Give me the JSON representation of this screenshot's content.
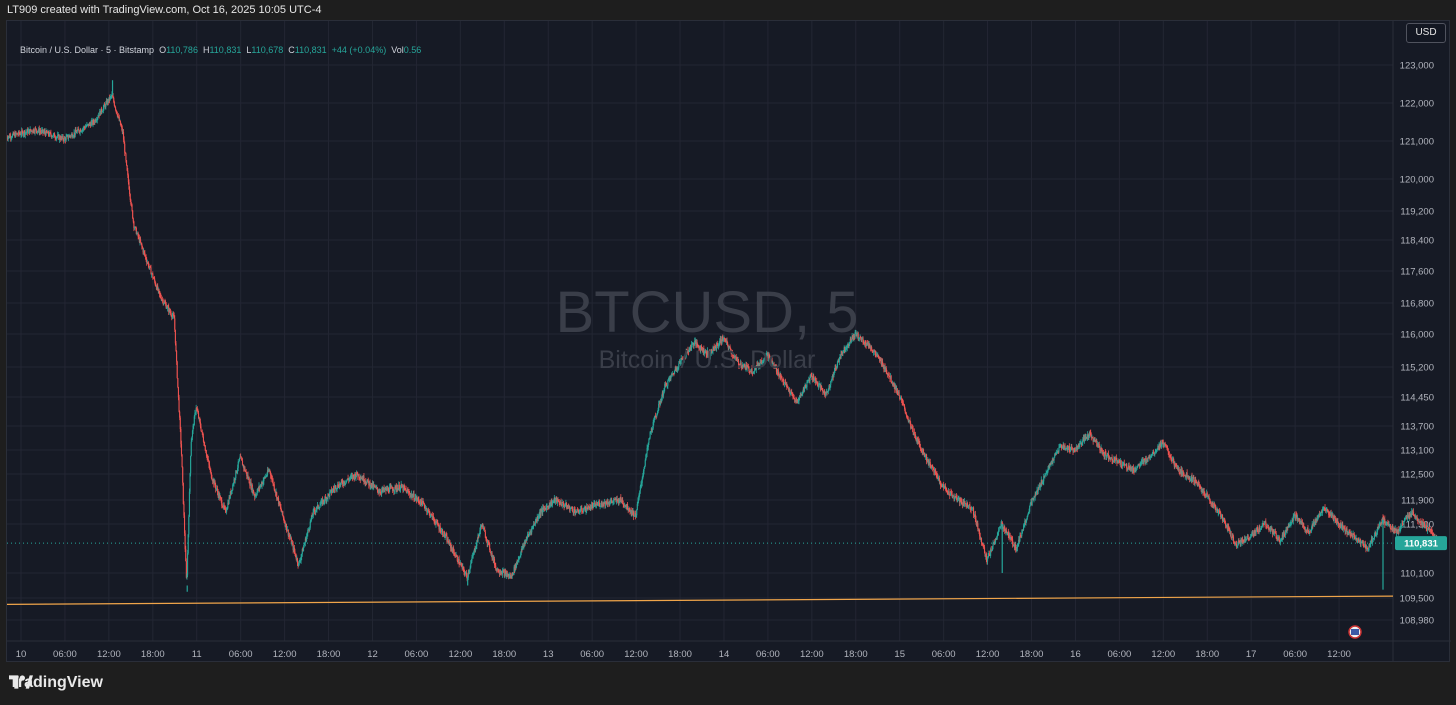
{
  "header": {
    "credit": "LT909 created with TradingView.com, Oct 16, 2025 10:05 UTC-4"
  },
  "legend": {
    "symbol": "Bitcoin / U.S. Dollar · 5 · Bitstamp",
    "o_label": "O",
    "o_value": "110,786",
    "h_label": "H",
    "h_value": "110,831",
    "l_label": "L",
    "l_value": "110,678",
    "c_label": "C",
    "c_value": "110,831",
    "change": "+44 (+0.04%)",
    "vol_label": "Vol",
    "vol_value": "0.56"
  },
  "currency_button": "USD",
  "watermark": {
    "symbol": "BTCUSD, 5",
    "name": "Bitcoin / U.S. Dollar"
  },
  "footer": {
    "brand": "TradingView"
  },
  "colors": {
    "up": "#26a69a",
    "down": "#ef5350",
    "trendline": "#f0a54a",
    "background": "#161a25",
    "grid": "#232633",
    "price_tag": "#26a69a"
  },
  "chart_data": {
    "type": "candlestick",
    "title": "BTCUSD, 5",
    "y_ticks": [
      123000,
      122000,
      121000,
      120000,
      119200,
      118400,
      117600,
      116800,
      116000,
      115200,
      114450,
      113700,
      113100,
      112500,
      111900,
      111300,
      110100,
      109500,
      108980
    ],
    "y_tick_labels": [
      "123,000",
      "122,000",
      "121,000",
      "120,000",
      "119,200",
      "118,400",
      "117,600",
      "116,800",
      "116,000",
      "115,200",
      "114,450",
      "113,700",
      "113,100",
      "112,500",
      "111,900",
      "111,300",
      "110,100",
      "109,500",
      "108,980"
    ],
    "x_tick_labels": [
      "10",
      "06:00",
      "12:00",
      "18:00",
      "11",
      "06:00",
      "12:00",
      "18:00",
      "12",
      "06:00",
      "12:00",
      "18:00",
      "13",
      "06:00",
      "12:00",
      "18:00",
      "14",
      "06:00",
      "12:00",
      "18:00",
      "15",
      "06:00",
      "12:00",
      "18:00",
      "16",
      "06:00",
      "12:00",
      "18:00",
      "17",
      "06:00",
      "12:00"
    ],
    "x_start_hours": -2,
    "x_end_hours": 172,
    "last_price": 110831,
    "last_price_label": "110,831",
    "price_path": [
      [
        -2,
        121100
      ],
      [
        2,
        121300
      ],
      [
        6,
        121050
      ],
      [
        10,
        121500
      ],
      [
        12.5,
        122200
      ],
      [
        14,
        121200
      ],
      [
        14.5,
        120300
      ],
      [
        15.5,
        118800
      ],
      [
        17,
        118000
      ],
      [
        19,
        117000
      ],
      [
        21,
        116400
      ],
      [
        22,
        113000
      ],
      [
        22.7,
        109800
      ],
      [
        23.3,
        113300
      ],
      [
        24,
        114200
      ],
      [
        26,
        112500
      ],
      [
        28,
        111600
      ],
      [
        30,
        112900
      ],
      [
        32,
        112000
      ],
      [
        34,
        112600
      ],
      [
        36,
        111400
      ],
      [
        38,
        110300
      ],
      [
        40,
        111600
      ],
      [
        43,
        112200
      ],
      [
        46,
        112500
      ],
      [
        49,
        112100
      ],
      [
        52,
        112200
      ],
      [
        55,
        111800
      ],
      [
        58,
        111000
      ],
      [
        61,
        110000
      ],
      [
        63,
        111300
      ],
      [
        65,
        110200
      ],
      [
        67,
        110000
      ],
      [
        69,
        110900
      ],
      [
        71,
        111600
      ],
      [
        73,
        111900
      ],
      [
        76,
        111600
      ],
      [
        79,
        111800
      ],
      [
        82,
        111900
      ],
      [
        84,
        111500
      ],
      [
        86,
        113500
      ],
      [
        88,
        114700
      ],
      [
        90,
        115300
      ],
      [
        92,
        115800
      ],
      [
        94,
        115500
      ],
      [
        96,
        115900
      ],
      [
        98,
        115300
      ],
      [
        100,
        115100
      ],
      [
        102,
        115500
      ],
      [
        104,
        114900
      ],
      [
        106,
        114300
      ],
      [
        108,
        115000
      ],
      [
        110,
        114500
      ],
      [
        112,
        115500
      ],
      [
        114,
        116000
      ],
      [
        116,
        115700
      ],
      [
        118,
        115200
      ],
      [
        120,
        114500
      ],
      [
        122,
        113500
      ],
      [
        124,
        112800
      ],
      [
        126,
        112200
      ],
      [
        128,
        111900
      ],
      [
        130,
        111700
      ],
      [
        132,
        110400
      ],
      [
        134,
        111300
      ],
      [
        136,
        110700
      ],
      [
        138,
        111800
      ],
      [
        140,
        112500
      ],
      [
        142,
        113200
      ],
      [
        144,
        113100
      ],
      [
        146,
        113500
      ],
      [
        148,
        113000
      ],
      [
        150,
        112800
      ],
      [
        152,
        112600
      ],
      [
        154,
        112900
      ],
      [
        156,
        113300
      ],
      [
        158,
        112600
      ],
      [
        160,
        112400
      ],
      [
        162,
        112000
      ],
      [
        164,
        111500
      ],
      [
        166,
        110800
      ],
      [
        168,
        111000
      ],
      [
        170,
        111300
      ],
      [
        172,
        110900
      ],
      [
        174,
        111500
      ],
      [
        176,
        111100
      ],
      [
        178,
        111700
      ],
      [
        180,
        111300
      ],
      [
        182,
        111000
      ],
      [
        184,
        110700
      ],
      [
        186,
        111400
      ],
      [
        188,
        111100
      ],
      [
        190,
        111600
      ],
      [
        192,
        111200
      ],
      [
        194,
        110831
      ]
    ],
    "wicks": [
      [
        22.7,
        109650
      ],
      [
        12.5,
        122600
      ],
      [
        114,
        116100
      ],
      [
        186,
        109700
      ],
      [
        134,
        110100
      ],
      [
        61,
        109800
      ]
    ],
    "trendline": [
      [
        -2,
        109350
      ],
      [
        240,
        109600
      ]
    ]
  }
}
